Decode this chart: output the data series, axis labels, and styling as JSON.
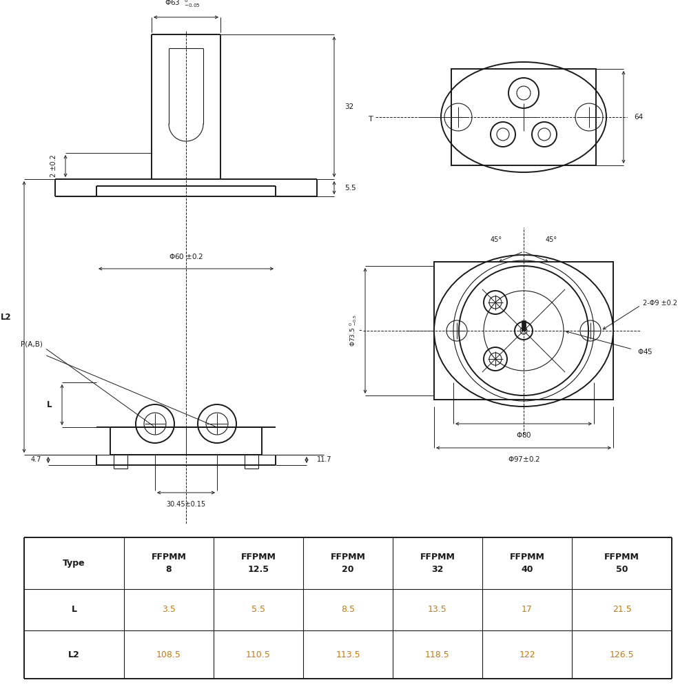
{
  "bg_color": "#ffffff",
  "line_color": "#1a1a1a",
  "orange_color": "#cc7a00",
  "lw_main": 1.4,
  "lw_thin": 0.8,
  "lw_dim": 0.7,
  "table": {
    "col_labels": [
      "Type",
      "FFPMM\n8",
      "FFPMM\n12.5",
      "FFPMM\n20",
      "FFPMM\n32",
      "FFPMM\n40",
      "FFPMM\n50"
    ],
    "row_L": [
      "L",
      "3.5",
      "5.5",
      "8.5",
      "13.5",
      "17",
      "21.5"
    ],
    "row_L2": [
      "L2",
      "108.5",
      "110.5",
      "113.5",
      "118.5",
      "122",
      "126.5"
    ]
  }
}
